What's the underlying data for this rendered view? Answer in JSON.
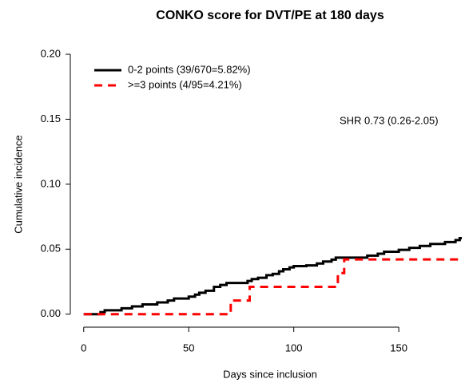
{
  "chart_data": {
    "type": "line",
    "step": true,
    "title": "CONKO score for DVT/PE at 180 days",
    "xlabel": "Days since inclusion",
    "ylabel": "Cumulative incidence",
    "annotation": "SHR 0.73 (0.26-2.05)",
    "xlim": [
      -6,
      180
    ],
    "ylim": [
      -0.01,
      0.2
    ],
    "xticks": [
      0,
      50,
      100,
      150
    ],
    "yticks": [
      {
        "value": 0,
        "label": "0.00"
      },
      {
        "value": 0.05,
        "label": "0.05"
      },
      {
        "value": 0.1,
        "label": "0.10"
      },
      {
        "value": 0.15,
        "label": "0.15"
      },
      {
        "value": 0.2,
        "label": "0.20"
      }
    ],
    "legend": "top-left",
    "series": [
      {
        "name": "0-2 points (39/670=5.82%)",
        "color": "#000000",
        "dash": false,
        "x": [
          0,
          8,
          10,
          18,
          23,
          28,
          35,
          40,
          43,
          50,
          53,
          55,
          58,
          62,
          65,
          68,
          78,
          80,
          83,
          87,
          90,
          93,
          95,
          98,
          100,
          106,
          111,
          114,
          118,
          120,
          135,
          140,
          143,
          150,
          155,
          160,
          165,
          172,
          177,
          179,
          180
        ],
        "values": [
          0,
          0.0015,
          0.003,
          0.0045,
          0.006,
          0.0075,
          0.009,
          0.0105,
          0.012,
          0.0135,
          0.015,
          0.0165,
          0.018,
          0.021,
          0.0225,
          0.024,
          0.0255,
          0.027,
          0.028,
          0.03,
          0.031,
          0.033,
          0.0345,
          0.036,
          0.037,
          0.0375,
          0.039,
          0.0405,
          0.042,
          0.0435,
          0.045,
          0.0465,
          0.048,
          0.0495,
          0.051,
          0.0525,
          0.054,
          0.0555,
          0.057,
          0.0585,
          0.0585
        ]
      },
      {
        "name": ">=3 points (4/95=4.21%)",
        "color": "#ff0000",
        "dash": true,
        "x": [
          0,
          70,
          79,
          121,
          124,
          180
        ],
        "values": [
          0,
          0.0105,
          0.021,
          0.0316,
          0.0421,
          0.0421
        ]
      }
    ]
  }
}
